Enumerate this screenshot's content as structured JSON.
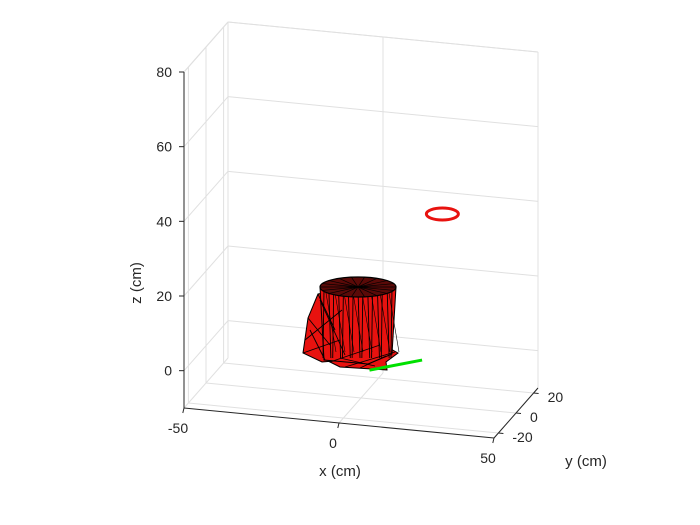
{
  "chart_data": {
    "type": "scatter",
    "projection": "3d",
    "title": "",
    "xlabel": "x (cm)",
    "ylabel": "y (cm)",
    "zlabel": "z (cm)",
    "xlim": [
      -50,
      50
    ],
    "ylim": [
      -25,
      25
    ],
    "zlim": [
      -10,
      80
    ],
    "xticks": [
      -50,
      0,
      50
    ],
    "yticks": [
      -20,
      0,
      20
    ],
    "zticks": [
      0,
      20,
      40,
      60,
      80
    ],
    "xtick_labels": [
      "-50",
      "0",
      "50"
    ],
    "ytick_labels": [
      "-20",
      "0",
      "20"
    ],
    "ztick_labels": [
      "0",
      "20",
      "40",
      "60",
      "80"
    ],
    "grid": true,
    "legend": "none",
    "colors": {
      "robot_mesh": "#e8120f",
      "mesh_edges": "#000000",
      "target_ring": "#e8120f",
      "trajectory": "#00e000",
      "grid": "#e0e0e0",
      "axis": "#262626"
    },
    "objects": [
      {
        "kind": "mesh",
        "color": "red",
        "center": [
          0,
          0,
          12
        ],
        "height": 20
      },
      {
        "kind": "ring",
        "color": "red",
        "center": [
          20,
          22,
          35
        ],
        "radius": 4
      },
      {
        "kind": "line",
        "color": "green",
        "from": [
          5,
          -8,
          0
        ],
        "to": [
          18,
          6,
          0
        ]
      }
    ]
  }
}
